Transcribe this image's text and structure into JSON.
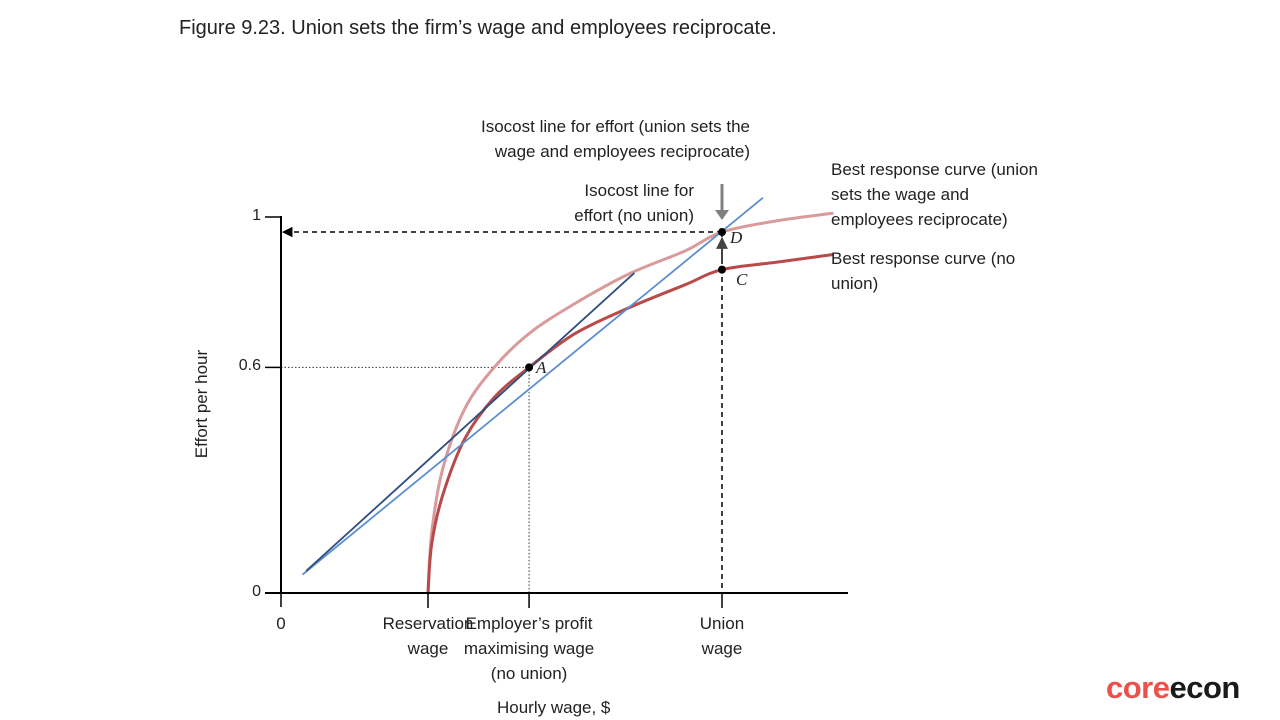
{
  "figure_title": "Figure 9.23. Union sets the firm’s wage and employees reciprocate.",
  "brand": {
    "part1": "core",
    "part2": "econ"
  },
  "colors": {
    "br_no_union": "#b84a4a",
    "br_union": "#d89a9a",
    "isocost_no_union": "#2f4f7f",
    "isocost_union": "#5b8fd0",
    "axis": "#000000",
    "arrow_grey": "#808080"
  },
  "annotations": {
    "isocost_union_line1": "Isocost line for effort (union sets the",
    "isocost_union_line2": "wage and employees reciprocate)",
    "isocost_no_union_line1": "Isocost line for",
    "isocost_no_union_line2": "effort (no union)",
    "br_union_line1": "Best response curve (union",
    "br_union_line2": "sets the wage and",
    "br_union_line3": "employees reciprocate)",
    "br_no_union_line1": "Best response curve (no",
    "br_no_union_line2": "union)"
  },
  "chart_data": {
    "type": "line",
    "title": "",
    "xlabel": "Hourly wage, $",
    "ylabel": "Effort per hour",
    "x_ticks": [
      {
        "key": "origin",
        "lines": [
          "0"
        ],
        "value": 0
      },
      {
        "key": "reservation",
        "lines": [
          "Reservation",
          "wage"
        ],
        "value": 4
      },
      {
        "key": "profit_max",
        "lines": [
          "Employer’s profit",
          "maximising wage",
          "(no union)"
        ],
        "value": 6.75
      },
      {
        "key": "union",
        "lines": [
          "Union",
          "wage"
        ],
        "value": 12
      }
    ],
    "y_ticks": [
      {
        "label": "0",
        "value": 0
      },
      {
        "label": "0.6",
        "value": 0.6
      },
      {
        "label": "1",
        "value": 1
      }
    ],
    "xlim": [
      0,
      15.5
    ],
    "ylim": [
      0,
      1
    ],
    "grid": false,
    "points": [
      {
        "name": "A",
        "x": 6.75,
        "y": 0.6
      },
      {
        "name": "C",
        "x": 12,
        "y": 0.86
      },
      {
        "name": "D",
        "x": 12,
        "y": 0.96
      }
    ],
    "series": [
      {
        "key": "br_no_union",
        "x": [
          4,
          4.1,
          4.4,
          5,
          5.8,
          6.75,
          8,
          9.5,
          11,
          12,
          13.5,
          15
        ],
        "y": [
          0,
          0.13,
          0.26,
          0.41,
          0.52,
          0.6,
          0.69,
          0.76,
          0.82,
          0.86,
          0.88,
          0.9
        ]
      },
      {
        "key": "br_union",
        "x": [
          4,
          4.1,
          4.4,
          5,
          5.8,
          6.75,
          8,
          9.5,
          11,
          12,
          13.5,
          15
        ],
        "y": [
          0,
          0.16,
          0.33,
          0.49,
          0.6,
          0.69,
          0.77,
          0.85,
          0.91,
          0.96,
          0.99,
          1.01
        ]
      },
      {
        "key": "isocost_no_union",
        "x": [
          0.7,
          9.6
        ],
        "y": [
          0.06,
          0.85
        ]
      },
      {
        "key": "isocost_union",
        "x": [
          0.6,
          13.1
        ],
        "y": [
          0.05,
          1.05
        ]
      }
    ]
  }
}
